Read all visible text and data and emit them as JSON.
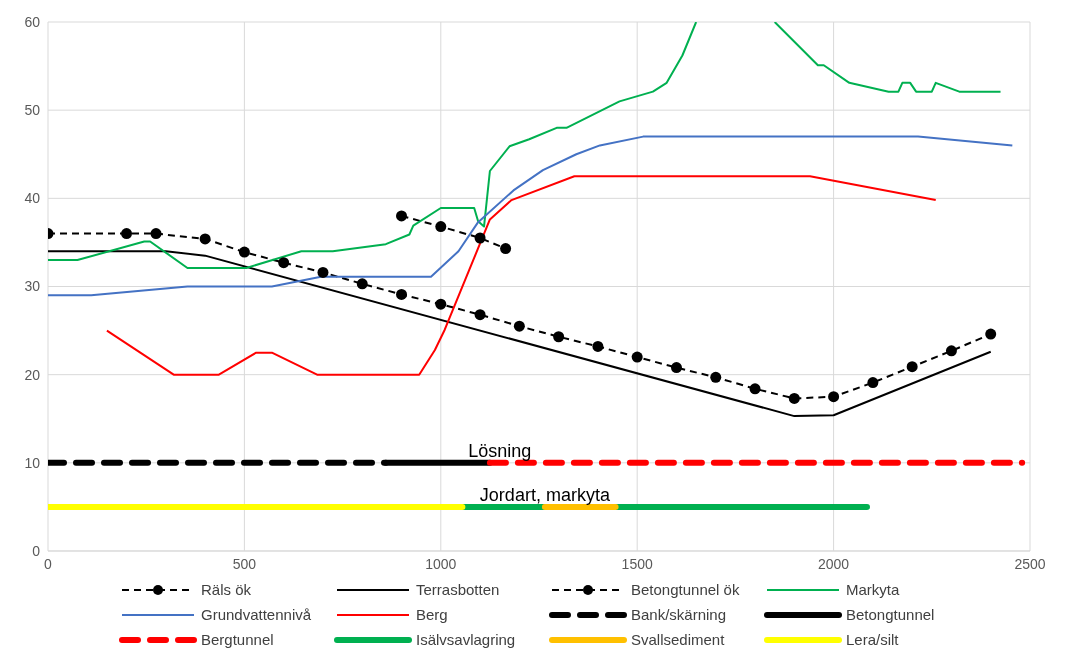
{
  "chart_data": {
    "type": "line",
    "xlim": [
      0,
      2500
    ],
    "xticks": [
      0,
      500,
      1000,
      1500,
      2000,
      2500
    ],
    "ylim": [
      0,
      60
    ],
    "yticks": [
      0,
      10,
      20,
      30,
      40,
      50,
      60
    ],
    "grid": true,
    "legend": "bottom",
    "annotations": [
      {
        "text": "Lösning",
        "x": 1150,
        "y": 10
      },
      {
        "text": "Jordart, markyta",
        "x": 1265,
        "y": 5
      }
    ],
    "series": [
      {
        "name": "Räls ök",
        "color": "#000000",
        "line_style": "dashed",
        "marker": "circle",
        "x": [
          0,
          200,
          275,
          400,
          500,
          600,
          700,
          800,
          900,
          1000,
          1100,
          1200,
          1300,
          1400,
          1500,
          1600,
          1700,
          1800,
          1900,
          2000,
          2100,
          2200,
          2300,
          2400
        ],
        "values": [
          36,
          36,
          36,
          35.4,
          33.9,
          32.7,
          31.6,
          30.3,
          29.1,
          28,
          26.8,
          25.5,
          24.3,
          23.2,
          22,
          20.8,
          19.7,
          18.4,
          17.3,
          17.5,
          19.1,
          20.9,
          22.7,
          24.6
        ]
      },
      {
        "name": "Terrasbotten",
        "color": "#000000",
        "x": [
          0,
          300,
          400,
          1900,
          2000,
          2400
        ],
        "values": [
          34,
          34,
          33.5,
          15.3,
          15.4,
          22.6
        ]
      },
      {
        "name": "Betongtunnel ök",
        "color": "#000000",
        "line_style": "dashed",
        "marker": "circle",
        "x": [
          900,
          1000,
          1100,
          1165
        ],
        "values": [
          38,
          36.8,
          35.5,
          34.3
        ]
      },
      {
        "name": "Markyta",
        "color": "#00b050",
        "x": [
          0,
          75,
          245,
          260,
          355,
          505,
          645,
          725,
          860,
          920,
          930,
          1000,
          1085,
          1095,
          1110,
          1125,
          1175,
          1225,
          1295,
          1320,
          1455,
          1540,
          1575,
          1615,
          1650,
          1750,
          1850,
          1960,
          1975,
          2040,
          2140,
          2165,
          2175,
          2195,
          2210,
          2250,
          2260,
          2320,
          2425
        ],
        "values": [
          33,
          33,
          35.1,
          35.1,
          32.1,
          32.1,
          34,
          34,
          34.8,
          35.9,
          36.9,
          38.9,
          38.9,
          37.4,
          36.8,
          43.1,
          45.9,
          46.7,
          48,
          48,
          51,
          52.1,
          53.1,
          56.2,
          60,
          null,
          60,
          55.1,
          55.1,
          53.1,
          52.1,
          52.1,
          53.1,
          53.1,
          52.1,
          52.1,
          53.1,
          52.1,
          52.1
        ]
      },
      {
        "name": "Grundvattennivå",
        "color": "#4472c4",
        "x": [
          0,
          110,
          355,
          570,
          695,
          975,
          1045,
          1095,
          1185,
          1260,
          1345,
          1405,
          1515,
          2215,
          2455
        ],
        "values": [
          29,
          29,
          30,
          30,
          31.1,
          31.1,
          34,
          37.3,
          40.9,
          43.2,
          45,
          46,
          47,
          47,
          46
        ]
      },
      {
        "name": "Berg",
        "color": "#ff0000",
        "x": [
          150,
          320,
          435,
          530,
          570,
          685,
          945,
          985,
          1010,
          1125,
          1180,
          1340,
          1940,
          2260
        ],
        "values": [
          25,
          20,
          20,
          22.5,
          22.5,
          20,
          20,
          22.8,
          25.1,
          37.6,
          39.8,
          42.5,
          42.5,
          39.8
        ]
      },
      {
        "name": "Bank/skärning",
        "color": "#000000",
        "line_style": "dashed",
        "x": [
          0,
          860
        ],
        "values": [
          10,
          10
        ]
      },
      {
        "name": "Betongtunnel",
        "color": "#000000",
        "x": [
          860,
          1125
        ],
        "values": [
          10,
          10
        ]
      },
      {
        "name": "Bergtunnel",
        "color": "#ff0000",
        "line_style": "dashed",
        "x": [
          1125,
          2480
        ],
        "values": [
          10,
          10
        ]
      },
      {
        "name": "Isälvsavlagring",
        "color": "#00b050",
        "x": [
          1055,
          2085
        ],
        "values": [
          5,
          5
        ]
      },
      {
        "name": "Svallsediment",
        "color": "#ffc000",
        "x": [
          1265,
          1445
        ],
        "values": [
          5,
          5
        ]
      },
      {
        "name": "Lera/silt",
        "color": "#ffff00",
        "x": [
          0,
          1055
        ],
        "values": [
          5,
          5
        ]
      }
    ]
  }
}
